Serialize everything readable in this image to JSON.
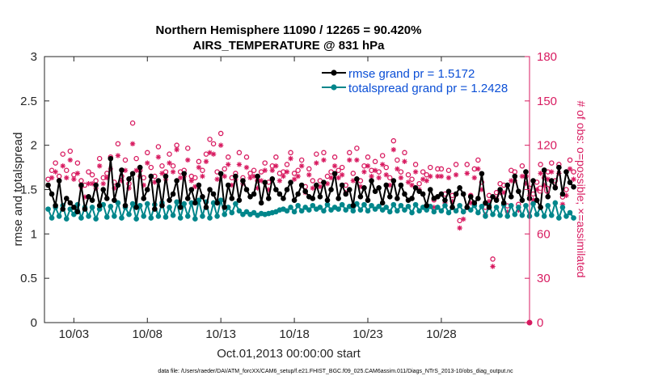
{
  "chart_data": {
    "type": "line",
    "title": "Northern Hemisphere 11090 / 12265 = 90.420%",
    "subtitle": "AIRS_TEMPERATURE @ 831 hPa",
    "xlabel": "Oct.01,2013 00:00:00 start",
    "ylabel": "rmse and totalspread",
    "y2label": "# of obs: o=possible; ×=assimilated",
    "footnote": "data file: /Users/raeder/DAI/ATM_forcXX/CAM6_setup/f.e21.FHIST_BGC.f09_025.CAM6assim.011/Diags_NTrS_2013-10/obs_diag_output.nc",
    "xlim": [
      1.0,
      34.0
    ],
    "ylim": [
      0,
      3
    ],
    "y2lim": [
      0,
      180
    ],
    "xticks": [
      3,
      8,
      13,
      18,
      23,
      28
    ],
    "xticklabels": [
      "10/03",
      "10/08",
      "10/13",
      "10/18",
      "10/23",
      "10/28"
    ],
    "yticks": [
      "0",
      "0.5",
      "1",
      "1.5",
      "2",
      "2.5",
      "3"
    ],
    "y2ticks": [
      "0",
      "30",
      "60",
      "90",
      "120",
      "150",
      "180"
    ],
    "colors": {
      "rmse": "#000000",
      "spread": "#00868b",
      "obs": "#d81b60",
      "legendText": "#0b4fd6"
    },
    "x_start": 1.25,
    "x_step": 0.25,
    "series": [
      {
        "name": "rmse grand pr = 1.5172",
        "values": [
          1.55,
          1.45,
          1.32,
          1.6,
          1.28,
          1.4,
          1.35,
          1.3,
          1.25,
          1.55,
          1.28,
          1.42,
          1.38,
          1.55,
          1.32,
          1.5,
          1.4,
          1.85,
          1.38,
          1.55,
          1.72,
          1.32,
          1.62,
          1.68,
          1.3,
          1.75,
          1.4,
          1.5,
          1.65,
          1.28,
          1.6,
          1.32,
          1.65,
          1.38,
          1.45,
          1.6,
          1.3,
          1.68,
          1.4,
          1.5,
          1.35,
          1.55,
          1.42,
          1.3,
          1.5,
          1.45,
          1.35,
          1.68,
          1.3,
          1.55,
          1.4,
          1.65,
          1.38,
          1.6,
          1.5,
          1.42,
          1.45,
          1.65,
          1.35,
          1.58,
          1.4,
          1.62,
          1.5,
          1.45,
          1.4,
          1.5,
          1.58,
          1.38,
          1.45,
          1.55,
          1.48,
          1.42,
          1.4,
          1.55,
          1.42,
          1.58,
          1.38,
          1.5,
          1.68,
          1.4,
          1.55,
          1.45,
          1.5,
          1.32,
          1.62,
          1.42,
          1.52,
          1.38,
          1.6,
          1.48,
          1.52,
          1.35,
          1.55,
          1.42,
          1.6,
          1.4,
          1.55,
          1.45,
          1.38,
          1.4,
          1.52,
          1.48,
          1.45,
          1.32,
          1.5,
          1.4,
          1.42,
          1.45,
          1.38,
          1.48,
          1.3,
          1.45,
          1.52,
          1.45,
          1.3,
          1.42,
          1.35,
          1.4,
          1.68,
          1.35,
          1.3,
          1.42,
          1.38,
          1.5,
          1.35,
          1.55,
          1.42,
          1.65,
          1.48,
          1.38,
          1.7,
          1.4,
          1.6,
          1.38,
          1.3,
          1.72,
          1.42,
          1.6,
          1.52,
          1.75,
          1.45,
          1.7,
          1.58,
          1.53
        ]
      },
      {
        "name": "totalspread grand pr = 1.2428",
        "values": [
          1.28,
          1.18,
          1.3,
          1.2,
          1.32,
          1.17,
          1.28,
          1.22,
          1.33,
          1.18,
          1.3,
          1.2,
          1.3,
          1.17,
          1.28,
          1.33,
          1.19,
          1.31,
          1.2,
          1.35,
          1.18,
          1.3,
          1.22,
          1.34,
          1.17,
          1.32,
          1.2,
          1.34,
          1.18,
          1.33,
          1.2,
          1.35,
          1.19,
          1.3,
          1.21,
          1.36,
          1.18,
          1.34,
          1.2,
          1.35,
          1.17,
          1.38,
          1.2,
          1.36,
          1.18,
          1.35,
          1.2,
          1.38,
          1.22,
          1.3,
          1.24,
          1.34,
          1.26,
          1.22,
          1.25,
          1.22,
          1.24,
          1.21,
          1.23,
          1.22,
          1.23,
          1.24,
          1.25,
          1.27,
          1.28,
          1.26,
          1.3,
          1.25,
          1.32,
          1.26,
          1.3,
          1.27,
          1.32,
          1.28,
          1.3,
          1.26,
          1.33,
          1.27,
          1.3,
          1.28,
          1.33,
          1.27,
          1.31,
          1.26,
          1.34,
          1.27,
          1.33,
          1.26,
          1.32,
          1.28,
          1.31,
          1.27,
          1.3,
          1.25,
          1.33,
          1.26,
          1.32,
          1.27,
          1.31,
          1.24,
          1.33,
          1.26,
          1.3,
          1.27,
          1.31,
          1.25,
          1.3,
          1.26,
          1.32,
          1.24,
          1.3,
          1.26,
          1.32,
          1.25,
          1.3,
          1.27,
          1.32,
          1.24,
          1.31,
          1.2,
          1.32,
          1.22,
          1.3,
          1.21,
          1.33,
          1.2,
          1.32,
          1.22,
          1.3,
          1.21,
          1.32,
          1.2,
          1.34,
          1.22,
          1.3,
          1.2,
          1.32,
          1.21,
          1.35,
          1.18,
          1.3,
          1.2,
          1.24,
          1.18
        ]
      },
      {
        "name": "# possible",
        "values": [
          97,
          103,
          108,
          99,
          114,
          103,
          116,
          100,
          108,
          96,
          93,
          102,
          100,
          96,
          111,
          98,
          101,
          112,
          95,
          121,
          99,
          110,
          94,
          135,
          111,
          103,
          98,
          115,
          105,
          99,
          119,
          106,
          102,
          114,
          106,
          120,
          102,
          103,
          118,
          99,
          98,
          109,
          103,
          114,
          124,
          121,
          102,
          128,
          104,
          112,
          98,
          101,
          115,
          98,
          112,
          101,
          103,
          96,
          102,
          108,
          95,
          106,
          112,
          101,
          102,
          107,
          115,
          101,
          103,
          110,
          92,
          104,
          96,
          114,
          96,
          115,
          99,
          102,
          112,
          103,
          105,
          93,
          115,
          101,
          118,
          96,
          106,
          112,
          103,
          109,
          102,
          113,
          105,
          98,
          123,
          110,
          102,
          115,
          100,
          97,
          107,
          94,
          102,
          100,
          105,
          83,
          104,
          104,
          87,
          103,
          86,
          107,
          69,
          75,
          107,
          86,
          104,
          110,
          95,
          78,
          86,
          43,
          88,
          94,
          93,
          79,
          103,
          102,
          80,
          106,
          99,
          91,
          87,
          95,
          107,
          98,
          102,
          108,
          96,
          107,
          85,
          90,
          110,
          102
        ]
      },
      {
        "name": "# assimilated",
        "values": [
          93,
          98,
          102,
          96,
          106,
          98,
          110,
          97,
          101,
          92,
          85,
          94,
          94,
          91,
          106,
          94,
          98,
          104,
          91,
          113,
          96,
          103,
          91,
          121,
          103,
          99,
          93,
          108,
          99,
          95,
          112,
          101,
          97,
          108,
          102,
          117,
          98,
          99,
          110,
          96,
          92,
          105,
          99,
          109,
          115,
          114,
          97,
          120,
          99,
          107,
          93,
          97,
          107,
          94,
          105,
          98,
          99,
          91,
          96,
          103,
          90,
          103,
          106,
          96,
          99,
          102,
          111,
          97,
          99,
          106,
          88,
          100,
          91,
          108,
          92,
          110,
          94,
          98,
          106,
          98,
          100,
          88,
          110,
          96,
          110,
          92,
          102,
          106,
          99,
          103,
          98,
          107,
          100,
          93,
          117,
          104,
          98,
          109,
          95,
          93,
          102,
          90,
          97,
          96,
          99,
          78,
          99,
          99,
          81,
          98,
          82,
          100,
          64,
          70,
          101,
          81,
          98,
          104,
          90,
          73,
          82,
          38,
          84,
          88,
          88,
          75,
          96,
          96,
          76,
          99,
          94,
          86,
          83,
          90,
          101,
          93,
          97,
          102,
          92,
          101,
          80,
          86,
          104,
          97
        ]
      }
    ]
  }
}
